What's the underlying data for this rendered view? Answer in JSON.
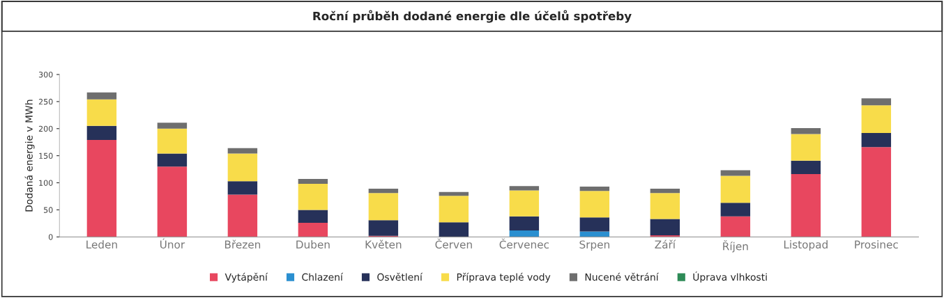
{
  "chart_data": {
    "type": "bar",
    "title": "Roční průběh dodané energie dle účelů spotřeby",
    "ylabel": "Dodaná energie v MWh",
    "categories": [
      "Leden",
      "Únor",
      "Březen",
      "Duben",
      "Květen",
      "Červen",
      "Červenec",
      "Srpen",
      "Září",
      "Říjen",
      "Listopad",
      "Prosinec"
    ],
    "stacked": true,
    "series": [
      {
        "name": "Vytápění",
        "color": "#e8475f",
        "values": [
          179,
          130,
          78,
          26,
          2,
          0,
          0,
          0,
          3,
          38,
          116,
          166
        ]
      },
      {
        "name": "Chlazení",
        "color": "#2a8fd0",
        "values": [
          0,
          0,
          0,
          0,
          0,
          0,
          12,
          10,
          0,
          0,
          0,
          0
        ]
      },
      {
        "name": "Osvětlení",
        "color": "#263159",
        "values": [
          26,
          24,
          25,
          24,
          29,
          27,
          26,
          26,
          30,
          25,
          25,
          26
        ]
      },
      {
        "name": "Příprava teplé vody",
        "color": "#f8dc4a",
        "values": [
          49,
          46,
          51,
          48,
          50,
          49,
          48,
          49,
          48,
          50,
          49,
          51
        ]
      },
      {
        "name": "Nucené větrání",
        "color": "#6e6e6e",
        "values": [
          13,
          11,
          10,
          9,
          8,
          7,
          8,
          8,
          8,
          10,
          11,
          13
        ]
      },
      {
        "name": "Úprava vlhkosti",
        "color": "#2e8b57",
        "values": [
          0,
          0,
          0,
          0,
          0,
          0,
          0,
          0,
          0,
          0,
          0,
          0
        ]
      }
    ],
    "ylim": [
      0,
      300
    ],
    "yticks": [
      0,
      50,
      100,
      150,
      200,
      250,
      300
    ],
    "grid": false,
    "legend": "bottom"
  }
}
